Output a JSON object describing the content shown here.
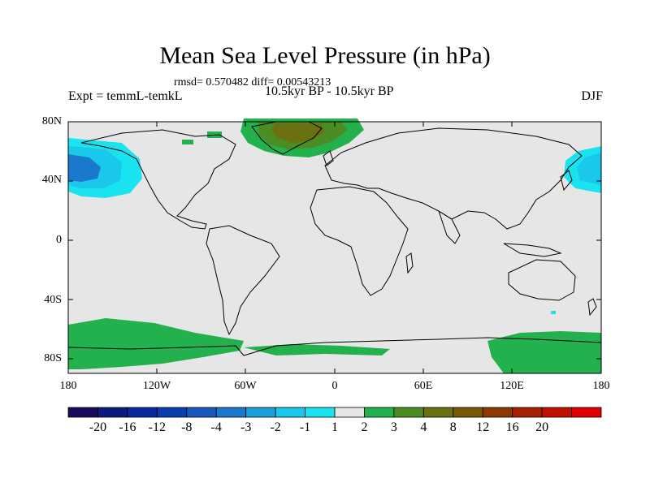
{
  "title": "Mean Sea Level Pressure (in hPa)",
  "stats": "rmsd= 0.570482 diff= 0.00543213",
  "experiment": "Expt = temmL-temkL",
  "period": "10.5kyr BP - 10.5kyr BP",
  "season": "DJF",
  "axes": {
    "y_ticks": [
      "80N",
      "40N",
      "0",
      "40S",
      "80S"
    ],
    "x_ticks": [
      "180",
      "120W",
      "60W",
      "0",
      "60E",
      "120E",
      "180"
    ]
  },
  "colorbar": {
    "labels": [
      "-20",
      "-16",
      "-12",
      "-8",
      "-4",
      "-3",
      "-2",
      "-1",
      "1",
      "2",
      "3",
      "4",
      "8",
      "12",
      "16",
      "20"
    ],
    "colors": [
      "#1a0a5e",
      "#0b1a80",
      "#0a2a9c",
      "#0a3eae",
      "#1a58be",
      "#1a78cf",
      "#19a0dd",
      "#19c8ea",
      "#19e3ef",
      "#e6e6e6",
      "#22b14c",
      "#4c8c24",
      "#6b7010",
      "#7a5a00",
      "#8c3a00",
      "#a82000",
      "#c21000",
      "#e00000"
    ]
  },
  "map_colors": {
    "background": "#e6e6e6",
    "land_outline": "#000000",
    "positive_light": "#22b14c",
    "positive_mid": "#4c8c24",
    "positive_strong": "#6b7010",
    "negative_light": "#19e3ef",
    "negative_mid": "#19c8ea",
    "negative_strong": "#1a78cf"
  }
}
